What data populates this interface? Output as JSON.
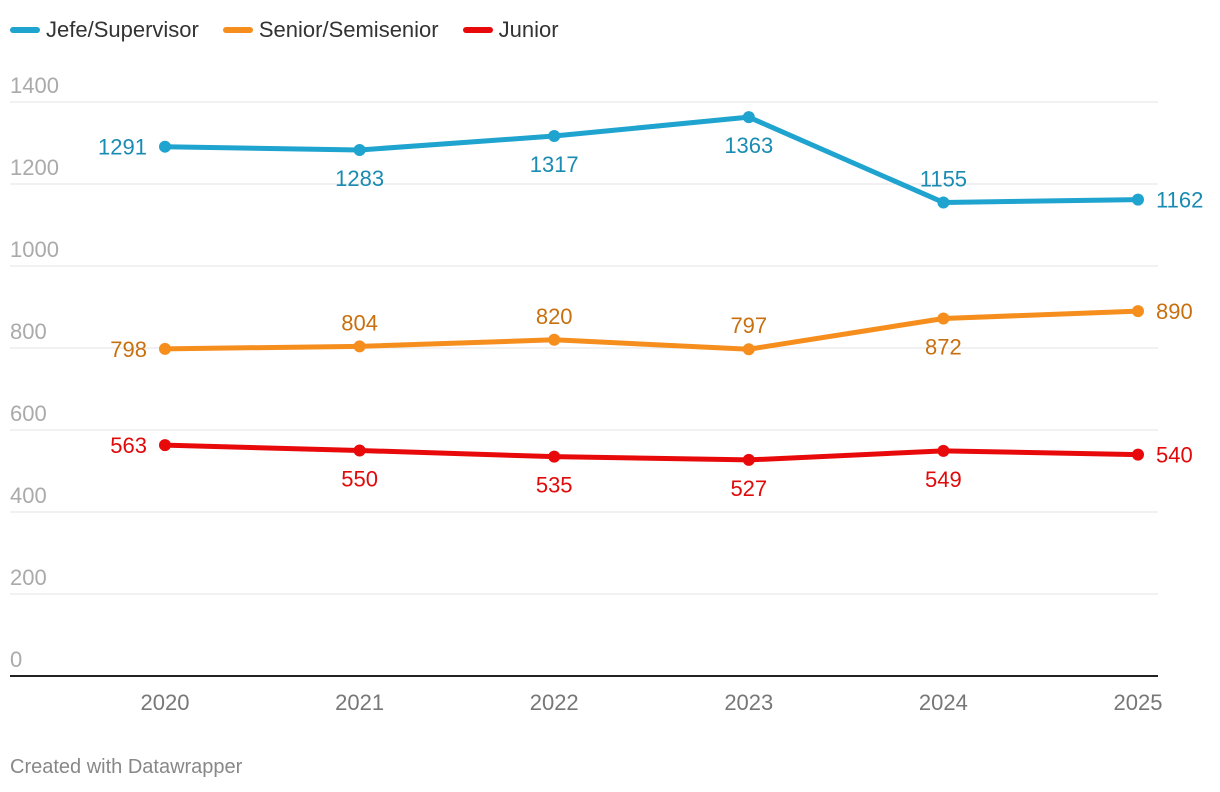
{
  "footer": "Created with Datawrapper",
  "chart_data": {
    "type": "line",
    "title": "",
    "xlabel": "",
    "ylabel": "",
    "x": [
      "2020",
      "2021",
      "2022",
      "2023",
      "2024",
      "2025"
    ],
    "ylim": [
      0,
      1400
    ],
    "yticks": [
      "0",
      "200",
      "400",
      "600",
      "800",
      "1000",
      "1200",
      "1400"
    ],
    "grid": true,
    "legend_position": "top-left",
    "series": [
      {
        "name": "Jefe/Supervisor",
        "color": "#1fa3cf",
        "label_color": "#1a8bb2",
        "values": [
          1291,
          1283,
          1317,
          1363,
          1155,
          1162
        ],
        "label_pos": [
          "left",
          "below",
          "below",
          "below",
          "above",
          "right"
        ]
      },
      {
        "name": "Senior/Semisenior",
        "color": "#f68e1e",
        "label_color": "#c8700f",
        "values": [
          798,
          804,
          820,
          797,
          872,
          890
        ],
        "label_pos": [
          "left",
          "above",
          "above",
          "above",
          "below",
          "right"
        ]
      },
      {
        "name": "Junior",
        "color": "#e80a0a",
        "label_color": "#e00a0a",
        "values": [
          563,
          550,
          535,
          527,
          549,
          540
        ],
        "label_pos": [
          "left",
          "below",
          "below",
          "below",
          "below",
          "right"
        ]
      }
    ]
  }
}
